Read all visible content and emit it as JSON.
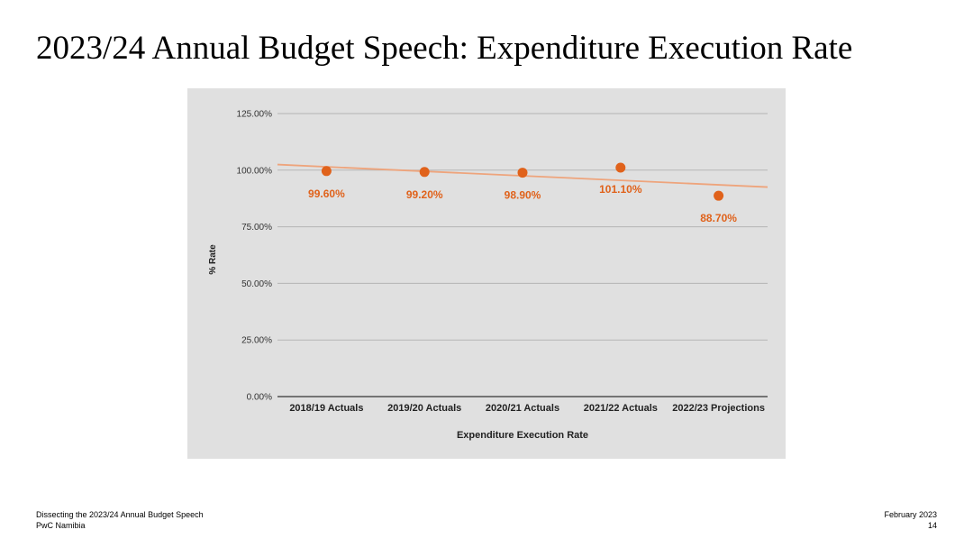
{
  "slide": {
    "title": "2023/24 Annual Budget Speech: Expenditure Execution Rate"
  },
  "footer": {
    "left_line1": "Dissecting the 2023/24 Annual Budget Speech",
    "left_line2": "PwC Namibia",
    "right_line1": "February 2023",
    "right_line2": "14"
  },
  "colors": {
    "chart_background": "#e0e0e0",
    "point": "#e0621b",
    "data_label": "#e0621b",
    "trendline": "#eea47c",
    "gridline": "#b5b5b5",
    "axis_line": "#333333"
  },
  "chart_data": {
    "type": "scatter",
    "categories": [
      "2018/19 Actuals",
      "2019/20 Actuals",
      "2020/21 Actuals",
      "2021/22 Actuals",
      "2022/23 Projections"
    ],
    "values": [
      99.6,
      99.2,
      98.9,
      101.1,
      88.7
    ],
    "data_labels": [
      "99.60%",
      "99.20%",
      "98.90%",
      "101.10%",
      "88.70%"
    ],
    "xlabel": "Expenditure Execution Rate",
    "ylabel": "% Rate",
    "ylim": [
      0,
      125
    ],
    "yticks": [
      0,
      25,
      50,
      75,
      100,
      125
    ],
    "ytick_labels": [
      "0.00%",
      "25.00%",
      "50.00%",
      "75.00%",
      "100.00%",
      "125.00%"
    ],
    "trendline": "linear",
    "grid": true,
    "legend": "none"
  }
}
